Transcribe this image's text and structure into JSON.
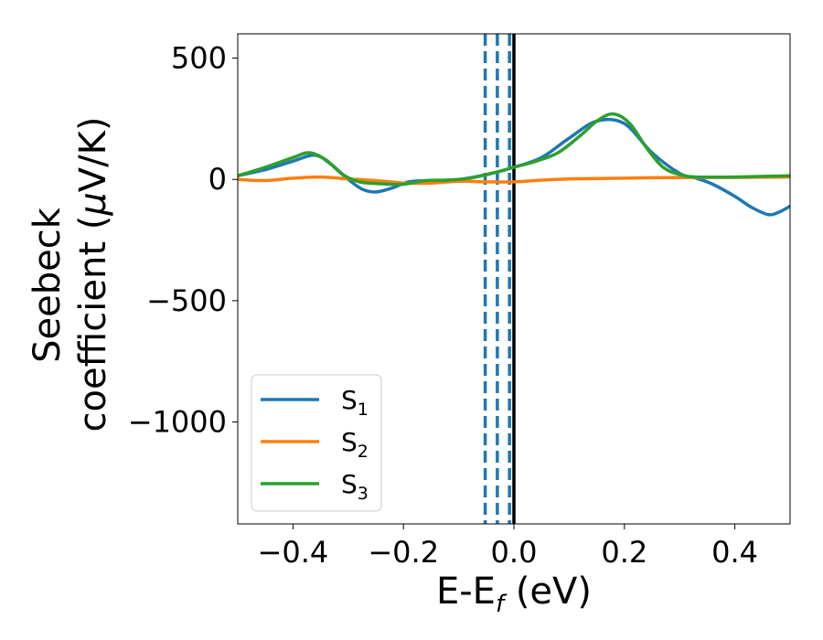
{
  "chart_data": {
    "type": "line",
    "xlabel_main": "E-E",
    "xlabel_sub": "f",
    "xlabel_unit": " (eV)",
    "ylabel_line1": "Seebeck",
    "ylabel_line2_prefix": "coefficient  (",
    "ylabel_mu": "μ",
    "ylabel_line2_suffix": "V/K)",
    "xlim": [
      -0.5,
      0.5
    ],
    "ylim": [
      -1420,
      600
    ],
    "x_ticks": [
      -0.4,
      -0.2,
      0.0,
      0.2,
      0.4
    ],
    "x_tick_labels": [
      "−0.4",
      "−0.2",
      "0.0",
      "0.2",
      "0.4"
    ],
    "y_ticks": [
      500,
      0,
      -500,
      -1000
    ],
    "y_tick_labels": [
      "500",
      "0",
      "−500",
      "−1000"
    ],
    "legend_placement": "lower-left",
    "series": [
      {
        "name_base": "S",
        "name_sub": "1",
        "color": "#1f77b4",
        "x": [
          -0.5,
          -0.45,
          -0.4,
          -0.36,
          -0.33,
          -0.3,
          -0.275,
          -0.25,
          -0.22,
          -0.19,
          -0.15,
          -0.1,
          -0.05,
          0.0,
          0.05,
          0.1,
          0.15,
          0.2,
          0.25,
          0.3,
          0.33,
          0.36,
          0.4,
          0.43,
          0.46,
          0.48,
          0.5
        ],
        "y": [
          15,
          40,
          75,
          100,
          60,
          0,
          -40,
          -52,
          -35,
          -10,
          -5,
          0,
          20,
          50,
          90,
          170,
          240,
          230,
          110,
          25,
          5,
          -20,
          -70,
          -115,
          -145,
          -135,
          -110
        ]
      },
      {
        "name_base": "S",
        "name_sub": "2",
        "color": "#ff7f0e",
        "x": [
          -0.5,
          -0.45,
          -0.4,
          -0.35,
          -0.3,
          -0.25,
          -0.2,
          -0.15,
          -0.1,
          -0.05,
          0.0,
          0.05,
          0.1,
          0.2,
          0.3,
          0.4,
          0.5
        ],
        "y": [
          0,
          -5,
          5,
          10,
          2,
          -5,
          -15,
          -15,
          -8,
          -10,
          -10,
          -3,
          2,
          5,
          8,
          8,
          10
        ]
      },
      {
        "name_base": "S",
        "name_sub": "3",
        "color": "#2ca02c",
        "x": [
          -0.5,
          -0.45,
          -0.4,
          -0.37,
          -0.34,
          -0.31,
          -0.28,
          -0.24,
          -0.2,
          -0.16,
          -0.12,
          -0.08,
          -0.04,
          0.0,
          0.04,
          0.08,
          0.12,
          0.15,
          0.18,
          0.21,
          0.24,
          0.27,
          0.3,
          0.33,
          0.4,
          0.5
        ],
        "y": [
          15,
          50,
          90,
          110,
          80,
          20,
          -10,
          -18,
          -20,
          -5,
          -3,
          5,
          25,
          50,
          75,
          110,
          180,
          240,
          270,
          230,
          130,
          50,
          20,
          10,
          10,
          15
        ]
      }
    ],
    "vlines": [
      {
        "x": -0.052,
        "color": "#1f77b4",
        "style": "dashed"
      },
      {
        "x": -0.03,
        "color": "#1f77b4",
        "style": "dashed"
      },
      {
        "x": -0.008,
        "color": "#1f77b4",
        "style": "dashed"
      },
      {
        "x": 0.0,
        "color": "#000000",
        "style": "solid"
      }
    ]
  }
}
